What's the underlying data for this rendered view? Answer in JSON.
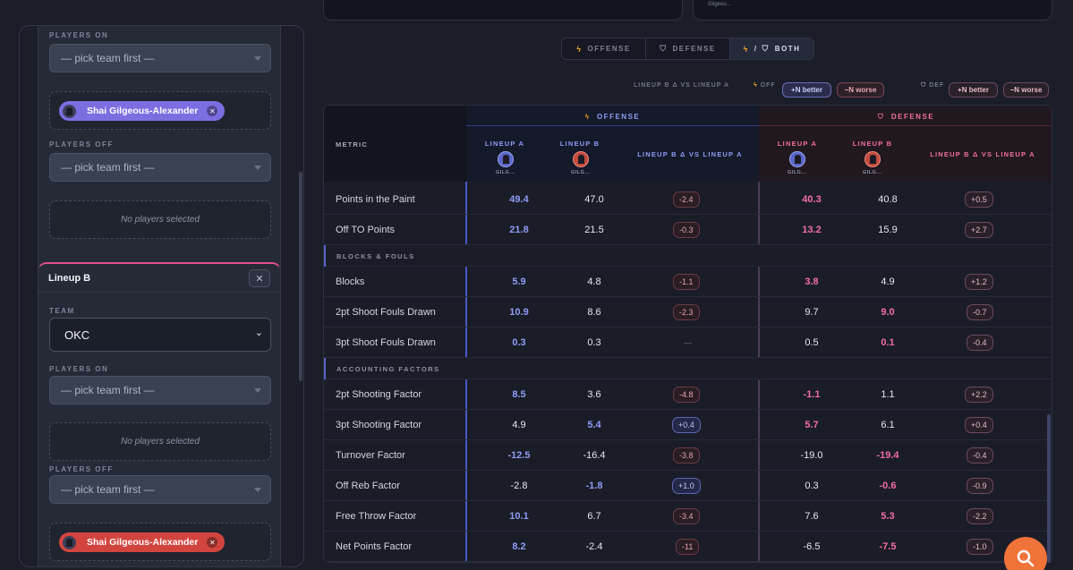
{
  "sidebar": {
    "lineup_a": {
      "players_on_label": "PLAYERS ON",
      "players_on_select": "— pick team first —",
      "players_on_chip": "Shai Gilgeous-Alexander",
      "players_off_label": "PLAYERS OFF",
      "players_off_select": "— pick team first —",
      "players_off_empty": "No players selected"
    },
    "lineup_b": {
      "title": "Lineup B",
      "close": "✕",
      "team_label": "TEAM",
      "team_value": "OKC",
      "players_on_label": "PLAYERS ON",
      "players_on_select": "— pick team first —",
      "players_on_empty": "No players selected",
      "players_off_label": "PLAYERS OFF",
      "players_off_select": "— pick team first —",
      "players_off_chip": "Shai Gilgeous-Alexander"
    }
  },
  "top_card_text": "Gilgeou...",
  "toggle": {
    "offense": "OFFENSE",
    "defense": "DEFENSE",
    "both_sep": "/",
    "both": "BOTH"
  },
  "legend": {
    "title": "LINEUP B Δ VS LINEUP A",
    "off": "OFF",
    "def": "DEF",
    "better": "+N better",
    "worse": "−N worse"
  },
  "table": {
    "metric_header": "METRIC",
    "offense_title": "OFFENSE",
    "defense_title": "DEFENSE",
    "lineup_a": "LINEUP A",
    "lineup_b": "LINEUP B",
    "delta": "LINEUP B Δ VS LINEUP A",
    "player_short": "GILG...",
    "rows_top": [
      {
        "metric": "Points in the Paint",
        "oa": "49.4",
        "ob": "47.0",
        "od": "-2.4",
        "da": "40.3",
        "db": "40.8",
        "dd": "+0.5"
      },
      {
        "metric": "Off TO Points",
        "oa": "21.8",
        "ob": "21.5",
        "od": "-0.3",
        "da": "13.2",
        "db": "15.9",
        "dd": "+2.7"
      }
    ],
    "section_blocks": "BLOCKS & FOULS",
    "rows_blocks": [
      {
        "metric": "Blocks",
        "oa": "5.9",
        "ob": "4.8",
        "od": "-1.1",
        "da": "3.8",
        "db": "4.9",
        "dd": "+1.2"
      },
      {
        "metric": "2pt Shoot Fouls Drawn",
        "oa": "10.9",
        "ob": "8.6",
        "od": "-2.3",
        "da": "9.7",
        "db": "9.0",
        "dd": "-0.7"
      },
      {
        "metric": "3pt Shoot Fouls Drawn",
        "oa": "0.3",
        "ob": "0.3",
        "od": "—",
        "da": "0.5",
        "db": "0.1",
        "dd": "-0.4"
      }
    ],
    "section_accounting": "ACCOUNTING FACTORS",
    "rows_accounting": [
      {
        "metric": "2pt Shooting Factor",
        "oa": "8.5",
        "ob": "3.6",
        "od": "-4.8",
        "da": "-1.1",
        "db": "1.1",
        "dd": "+2.2"
      },
      {
        "metric": "3pt Shooting Factor",
        "oa": "4.9",
        "ob": "5.4",
        "od": "+0.4",
        "da": "5.7",
        "db": "6.1",
        "dd": "+0.4"
      },
      {
        "metric": "Turnover Factor",
        "oa": "-12.5",
        "ob": "-16.4",
        "od": "-3.8",
        "da": "-19.0",
        "db": "-19.4",
        "dd": "-0.4"
      },
      {
        "metric": "Off Reb Factor",
        "oa": "-2.8",
        "ob": "-1.8",
        "od": "+1.0",
        "da": "0.3",
        "db": "-0.6",
        "dd": "-0.9"
      },
      {
        "metric": "Free Throw Factor",
        "oa": "10.1",
        "ob": "6.7",
        "od": "-3.4",
        "da": "7.6",
        "db": "5.3",
        "dd": "-2.2"
      },
      {
        "metric": "Net Points Factor",
        "oa": "8.2",
        "ob": "-2.4",
        "od": "-11",
        "da": "-6.5",
        "db": "-7.5",
        "dd": "-1.0"
      }
    ]
  },
  "colors": {
    "offense_accent": "#8f9cf5",
    "defense_accent": "#f26f9f",
    "lineup_b_accent": "#e1508f",
    "fab": "#f0733a"
  }
}
